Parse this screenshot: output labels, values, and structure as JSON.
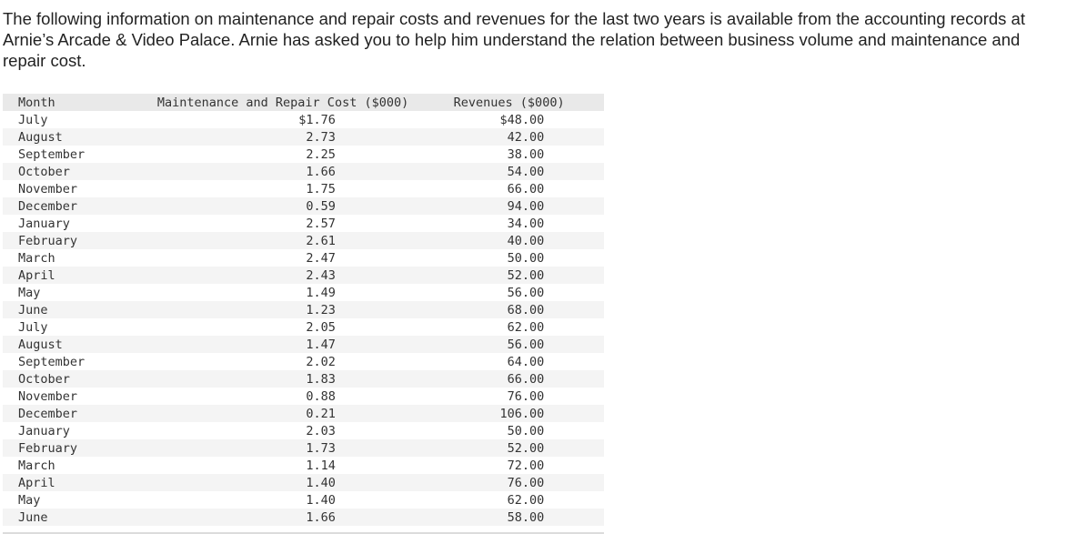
{
  "intro_text": "The following information on maintenance and repair costs and revenues for the last two years is available from the accounting records at Arnie’s Arcade & Video Palace. Arnie has asked you to help him understand the relation between business volume and maintenance and repair cost.",
  "table": {
    "headers": {
      "month": "Month",
      "cost": "Maintenance and Repair Cost ($000)",
      "revenue": "Revenues ($000)"
    },
    "rows": [
      {
        "month": "July",
        "cost": "$1.76",
        "revenue": "$48.00"
      },
      {
        "month": "August",
        "cost": "2.73",
        "revenue": "42.00"
      },
      {
        "month": "September",
        "cost": "2.25",
        "revenue": "38.00"
      },
      {
        "month": "October",
        "cost": "1.66",
        "revenue": "54.00"
      },
      {
        "month": "November",
        "cost": "1.75",
        "revenue": "66.00"
      },
      {
        "month": "December",
        "cost": "0.59",
        "revenue": "94.00"
      },
      {
        "month": "January",
        "cost": "2.57",
        "revenue": "34.00"
      },
      {
        "month": "February",
        "cost": "2.61",
        "revenue": "40.00"
      },
      {
        "month": "March",
        "cost": "2.47",
        "revenue": "50.00"
      },
      {
        "month": "April",
        "cost": "2.43",
        "revenue": "52.00"
      },
      {
        "month": "May",
        "cost": "1.49",
        "revenue": "56.00"
      },
      {
        "month": "June",
        "cost": "1.23",
        "revenue": "68.00"
      },
      {
        "month": "July",
        "cost": "2.05",
        "revenue": "62.00"
      },
      {
        "month": "August",
        "cost": "1.47",
        "revenue": "56.00"
      },
      {
        "month": "September",
        "cost": "2.02",
        "revenue": "64.00"
      },
      {
        "month": "October",
        "cost": "1.83",
        "revenue": "66.00"
      },
      {
        "month": "November",
        "cost": "0.88",
        "revenue": "76.00"
      },
      {
        "month": "December",
        "cost": "0.21",
        "revenue": "106.00"
      },
      {
        "month": "January",
        "cost": "2.03",
        "revenue": "50.00"
      },
      {
        "month": "February",
        "cost": "1.73",
        "revenue": "52.00"
      },
      {
        "month": "March",
        "cost": "1.14",
        "revenue": "72.00"
      },
      {
        "month": "April",
        "cost": "1.40",
        "revenue": "76.00"
      },
      {
        "month": "May",
        "cost": "1.40",
        "revenue": "62.00"
      },
      {
        "month": "June",
        "cost": "1.66",
        "revenue": "58.00"
      }
    ]
  }
}
